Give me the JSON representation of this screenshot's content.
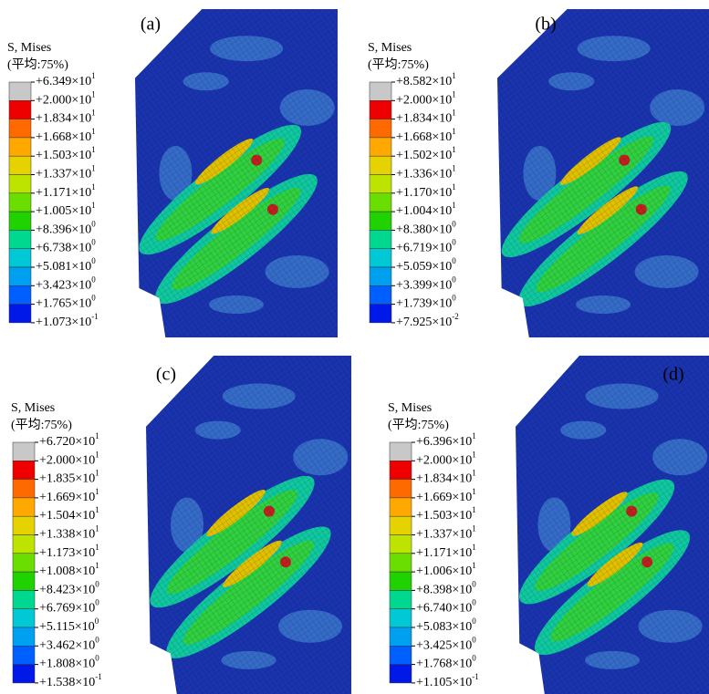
{
  "legend_colors": [
    "#c8c8c8",
    "#ee0000",
    "#ff6a00",
    "#ffa800",
    "#e6d200",
    "#bce400",
    "#6ade00",
    "#20d200",
    "#00d890",
    "#00c8d4",
    "#00a0f0",
    "#0060ff",
    "#0018e8"
  ],
  "panels": [
    {
      "label": "(a)",
      "title": "S, Mises",
      "subtitle": "(平均:75%)",
      "entries": [
        {
          "base": "+6.349×10",
          "exp": "1"
        },
        {
          "base": "+2.000×10",
          "exp": "1"
        },
        {
          "base": "+1.834×10",
          "exp": "1"
        },
        {
          "base": "+1.668×10",
          "exp": "1"
        },
        {
          "base": "+1.503×10",
          "exp": "1"
        },
        {
          "base": "+1.337×10",
          "exp": "1"
        },
        {
          "base": "+1.171×10",
          "exp": "1"
        },
        {
          "base": "+1.005×10",
          "exp": "1"
        },
        {
          "base": "+8.396×10",
          "exp": "0"
        },
        {
          "base": "+6.738×10",
          "exp": "0"
        },
        {
          "base": "+5.081×10",
          "exp": "0"
        },
        {
          "base": "+3.423×10",
          "exp": "0"
        },
        {
          "base": "+1.765×10",
          "exp": "0"
        },
        {
          "base": "+1.073×10",
          "exp": "-1"
        }
      ]
    },
    {
      "label": "(b)",
      "title": "S, Mises",
      "subtitle": "(平均:75%)",
      "entries": [
        {
          "base": "+8.582×10",
          "exp": "1"
        },
        {
          "base": "+2.000×10",
          "exp": "1"
        },
        {
          "base": "+1.834×10",
          "exp": "1"
        },
        {
          "base": "+1.668×10",
          "exp": "1"
        },
        {
          "base": "+1.502×10",
          "exp": "1"
        },
        {
          "base": "+1.336×10",
          "exp": "1"
        },
        {
          "base": "+1.170×10",
          "exp": "1"
        },
        {
          "base": "+1.004×10",
          "exp": "1"
        },
        {
          "base": "+8.380×10",
          "exp": "0"
        },
        {
          "base": "+6.719×10",
          "exp": "0"
        },
        {
          "base": "+5.059×10",
          "exp": "0"
        },
        {
          "base": "+3.399×10",
          "exp": "0"
        },
        {
          "base": "+1.739×10",
          "exp": "0"
        },
        {
          "base": "+7.925×10",
          "exp": "-2"
        }
      ]
    },
    {
      "label": "(c)",
      "title": "S, Mises",
      "subtitle": "(平均:75%)",
      "entries": [
        {
          "base": "+6.720×10",
          "exp": "1"
        },
        {
          "base": "+2.000×10",
          "exp": "1"
        },
        {
          "base": "+1.835×10",
          "exp": "1"
        },
        {
          "base": "+1.669×10",
          "exp": "1"
        },
        {
          "base": "+1.504×10",
          "exp": "1"
        },
        {
          "base": "+1.338×10",
          "exp": "1"
        },
        {
          "base": "+1.173×10",
          "exp": "1"
        },
        {
          "base": "+1.008×10",
          "exp": "1"
        },
        {
          "base": "+8.423×10",
          "exp": "0"
        },
        {
          "base": "+6.769×10",
          "exp": "0"
        },
        {
          "base": "+5.115×10",
          "exp": "0"
        },
        {
          "base": "+3.462×10",
          "exp": "0"
        },
        {
          "base": "+1.808×10",
          "exp": "0"
        },
        {
          "base": "+1.538×10",
          "exp": "-1"
        }
      ]
    },
    {
      "label": "(d)",
      "title": "S, Mises",
      "subtitle": "(平均:75%)",
      "entries": [
        {
          "base": "+6.396×10",
          "exp": "1"
        },
        {
          "base": "+2.000×10",
          "exp": "1"
        },
        {
          "base": "+1.834×10",
          "exp": "1"
        },
        {
          "base": "+1.669×10",
          "exp": "1"
        },
        {
          "base": "+1.503×10",
          "exp": "1"
        },
        {
          "base": "+1.337×10",
          "exp": "1"
        },
        {
          "base": "+1.171×10",
          "exp": "1"
        },
        {
          "base": "+1.006×10",
          "exp": "1"
        },
        {
          "base": "+8.398×10",
          "exp": "0"
        },
        {
          "base": "+6.740×10",
          "exp": "0"
        },
        {
          "base": "+5.083×10",
          "exp": "0"
        },
        {
          "base": "+3.425×10",
          "exp": "0"
        },
        {
          "base": "+1.768×10",
          "exp": "0"
        },
        {
          "base": "+1.105×10",
          "exp": "-1"
        }
      ]
    }
  ]
}
